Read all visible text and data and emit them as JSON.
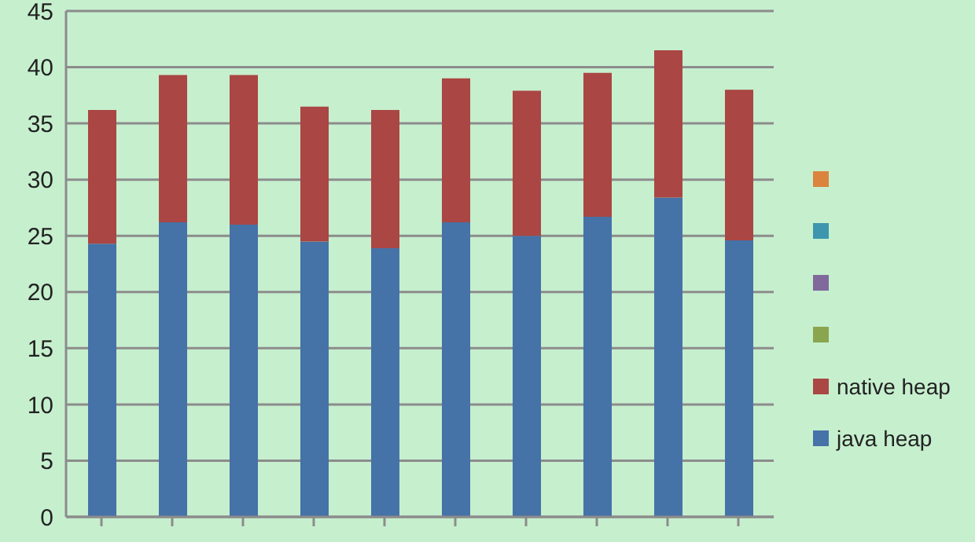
{
  "chart_data": {
    "type": "bar",
    "stacked": true,
    "categories": [
      null,
      null,
      null,
      null,
      null,
      null,
      null,
      null,
      null,
      null
    ],
    "series": [
      {
        "name": "java heap",
        "color": "#4572a7",
        "values": [
          24.3,
          26.2,
          26.0,
          24.5,
          23.9,
          26.2,
          25.0,
          26.7,
          28.4,
          24.6
        ]
      },
      {
        "name": "native heap",
        "color": "#aa4643",
        "values": [
          11.9,
          13.1,
          13.3,
          12.0,
          12.3,
          12.8,
          12.9,
          12.8,
          13.1,
          13.4
        ]
      },
      {
        "color": "#89a54e",
        "values": [
          null,
          null,
          null,
          null,
          null,
          null,
          null,
          null,
          null,
          null
        ]
      },
      {
        "color": "#80699b",
        "values": [
          null,
          null,
          null,
          null,
          null,
          null,
          null,
          null,
          null,
          null
        ]
      },
      {
        "color": "#3d96ae",
        "values": [
          null,
          null,
          null,
          null,
          null,
          null,
          null,
          null,
          null,
          null
        ]
      },
      {
        "color": "#db843d",
        "values": [
          null,
          null,
          null,
          null,
          null,
          null,
          null,
          null,
          null,
          null
        ]
      }
    ],
    "ylim": [
      0,
      45
    ],
    "yticks": [
      0,
      5,
      10,
      15,
      20,
      25,
      30,
      35,
      40,
      45
    ],
    "grid": "y",
    "legend": "right"
  }
}
